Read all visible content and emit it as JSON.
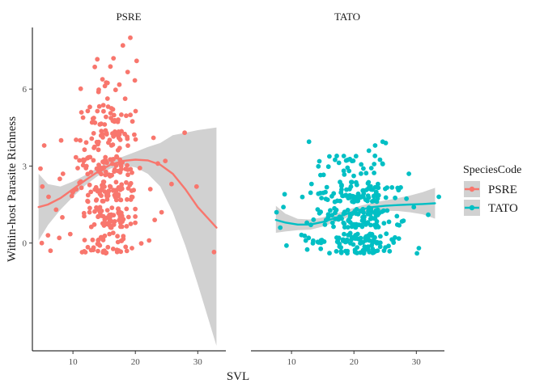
{
  "chart_data": {
    "type": "scatter",
    "xlabel": "SVL",
    "ylabel": "Within-host Parasite Richness",
    "xlim": [
      3.5,
      34.5
    ],
    "ylim": [
      -4.2,
      8.4
    ],
    "x_ticks": [
      10,
      20,
      30
    ],
    "y_ticks": [
      0,
      3,
      6
    ],
    "grid": false,
    "legend": {
      "title": "SpeciesCode",
      "placement": "right",
      "entries": [
        {
          "label": "PSRE",
          "color": "#F8766D"
        },
        {
          "label": "TATO",
          "color": "#00BFC4"
        }
      ]
    },
    "panels": [
      {
        "label": "PSRE",
        "color": "#F8766D",
        "smooth": {
          "x": [
            4.5,
            6,
            8,
            10,
            12,
            14,
            16,
            18,
            20,
            22,
            24,
            26,
            28,
            30,
            33
          ],
          "y": [
            1.4,
            1.5,
            1.75,
            2.1,
            2.45,
            2.78,
            3.05,
            3.2,
            3.25,
            3.22,
            3.05,
            2.7,
            2.1,
            1.4,
            0.6
          ],
          "lower": [
            0.1,
            0.7,
            1.3,
            1.8,
            2.25,
            2.62,
            2.9,
            3.03,
            2.95,
            2.7,
            2.2,
            1.2,
            -0.1,
            -1.6,
            -4.0
          ],
          "upper": [
            2.7,
            2.3,
            2.2,
            2.4,
            2.65,
            2.94,
            3.2,
            3.37,
            3.55,
            3.74,
            3.9,
            4.2,
            4.3,
            4.4,
            4.5
          ]
        },
        "cluster": {
          "xmin": 9,
          "xmax": 22,
          "levels": [
            0,
            1,
            2,
            3,
            4,
            5,
            6,
            7
          ],
          "counts": [
            45,
            60,
            65,
            60,
            42,
            32,
            12,
            4
          ]
        },
        "points": [
          {
            "x": 7.8,
            "y": 0.2
          },
          {
            "x": 6.4,
            "y": -0.3
          },
          {
            "x": 5.0,
            "y": 0.0
          },
          {
            "x": 6.0,
            "y": 0.3
          },
          {
            "x": 4.8,
            "y": 2.9
          },
          {
            "x": 5.1,
            "y": 2.2
          },
          {
            "x": 5.4,
            "y": 3.8
          },
          {
            "x": 7.3,
            "y": 1.3
          },
          {
            "x": 7.9,
            "y": 2.5
          },
          {
            "x": 6.1,
            "y": 1.8
          },
          {
            "x": 8.1,
            "y": 4.0
          },
          {
            "x": 8.4,
            "y": 2.7
          },
          {
            "x": 8.3,
            "y": 1.0
          },
          {
            "x": 23.1,
            "y": 0.9
          },
          {
            "x": 24.2,
            "y": 1.2
          },
          {
            "x": 22.4,
            "y": 2.1
          },
          {
            "x": 23.6,
            "y": 3.1
          },
          {
            "x": 24.8,
            "y": 3.2
          },
          {
            "x": 22.9,
            "y": 4.1
          },
          {
            "x": 25.8,
            "y": 2.3
          },
          {
            "x": 27.9,
            "y": 4.3
          },
          {
            "x": 29.8,
            "y": 2.2
          },
          {
            "x": 32.6,
            "y": -0.35
          },
          {
            "x": 22.2,
            "y": 0.1
          },
          {
            "x": 20.2,
            "y": 7.1
          },
          {
            "x": 19.2,
            "y": 8.0
          },
          {
            "x": 18.0,
            "y": 7.7
          },
          {
            "x": 16.5,
            "y": 7.2
          }
        ]
      },
      {
        "label": "TATO",
        "color": "#00BFC4",
        "smooth": {
          "x": [
            7.5,
            9,
            11,
            13,
            15,
            17,
            19,
            21,
            23,
            25,
            27,
            29,
            31,
            33
          ],
          "y": [
            0.9,
            0.8,
            0.72,
            0.72,
            0.82,
            0.98,
            1.15,
            1.3,
            1.4,
            1.45,
            1.48,
            1.5,
            1.52,
            1.55
          ],
          "lower": [
            0.4,
            0.45,
            0.5,
            0.52,
            0.64,
            0.82,
            1.0,
            1.15,
            1.23,
            1.26,
            1.25,
            1.2,
            1.12,
            0.95
          ],
          "upper": [
            1.45,
            1.15,
            0.94,
            0.92,
            1.0,
            1.14,
            1.3,
            1.45,
            1.57,
            1.66,
            1.75,
            1.85,
            1.98,
            2.15
          ]
        },
        "cluster": {
          "xmin": 10,
          "xmax": 31,
          "levels": [
            0,
            1,
            2,
            3
          ],
          "counts": [
            110,
            95,
            90,
            32
          ]
        },
        "points": [
          {
            "x": 7.6,
            "y": 1.2
          },
          {
            "x": 8.2,
            "y": 0.6
          },
          {
            "x": 8.7,
            "y": 1.4
          },
          {
            "x": 9.2,
            "y": -0.1
          },
          {
            "x": 8.9,
            "y": 1.9
          },
          {
            "x": 12.8,
            "y": 3.95
          },
          {
            "x": 22.4,
            "y": 3.6
          },
          {
            "x": 23.4,
            "y": 3.8
          },
          {
            "x": 24.6,
            "y": 3.95
          },
          {
            "x": 25.1,
            "y": 3.9
          },
          {
            "x": 31.9,
            "y": 1.1
          },
          {
            "x": 33.6,
            "y": 1.8
          },
          {
            "x": 30.1,
            "y": -0.4
          },
          {
            "x": 30.4,
            "y": -0.2
          },
          {
            "x": 28.8,
            "y": 2.7
          },
          {
            "x": 29.6,
            "y": 1.4
          }
        ]
      }
    ]
  }
}
